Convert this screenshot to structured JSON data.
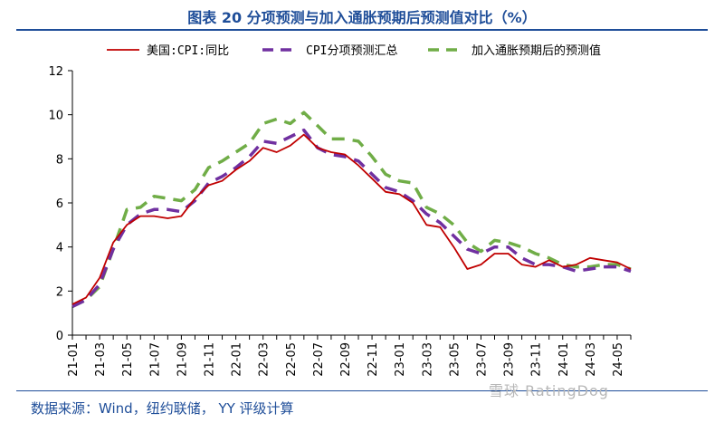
{
  "header": {
    "title": "图表 20 分项预测与加入通胀预期后预测值对比（%）"
  },
  "footer": {
    "source": "数据来源：Wind，纽约联储， YY 评级计算",
    "watermark": "雪球 RatingDog"
  },
  "colors": {
    "cpi": "#c00000",
    "sub": "#7030a0",
    "expect": "#70ad47",
    "accent": "#1f4e99"
  },
  "chart_data": {
    "type": "line",
    "title": "图表 20 分项预测与加入通胀预期后预测值对比（%）",
    "ylim": [
      0,
      12
    ],
    "yticks": [
      0,
      2,
      4,
      6,
      8,
      10,
      12
    ],
    "grid": false,
    "legend_position": "top",
    "x": [
      "21-01",
      "21-02",
      "21-03",
      "21-04",
      "21-05",
      "21-06",
      "21-07",
      "21-08",
      "21-09",
      "21-10",
      "21-11",
      "21-12",
      "22-01",
      "22-02",
      "22-03",
      "22-04",
      "22-05",
      "22-06",
      "22-07",
      "22-08",
      "22-09",
      "22-10",
      "22-11",
      "22-12",
      "23-01",
      "23-02",
      "23-03",
      "23-04",
      "23-05",
      "23-06",
      "23-07",
      "23-08",
      "23-09",
      "23-10",
      "23-11",
      "23-12",
      "24-01",
      "24-02",
      "24-03",
      "24-04",
      "24-05",
      "24-06"
    ],
    "xtick_labels": [
      "21-01",
      "21-03",
      "21-05",
      "21-07",
      "21-09",
      "21-11",
      "22-01",
      "22-03",
      "22-05",
      "22-07",
      "22-09",
      "22-11",
      "23-01",
      "23-03",
      "23-05",
      "23-07",
      "23-09",
      "23-11",
      "24-01",
      "24-03",
      "24-05"
    ],
    "series": [
      {
        "name": "美国:CPI:同比",
        "style": "solid",
        "color": "#c00000",
        "values": [
          1.4,
          1.7,
          2.6,
          4.2,
          5.0,
          5.4,
          5.4,
          5.3,
          5.4,
          6.2,
          6.8,
          7.0,
          7.5,
          7.9,
          8.5,
          8.3,
          8.6,
          9.1,
          8.5,
          8.3,
          8.2,
          7.7,
          7.1,
          6.5,
          6.4,
          6.0,
          5.0,
          4.9,
          4.0,
          3.0,
          3.2,
          3.7,
          3.7,
          3.2,
          3.1,
          3.4,
          3.1,
          3.2,
          3.5,
          3.4,
          3.3,
          3.0
        ]
      },
      {
        "name": "CPI分项预测汇总",
        "style": "dashed",
        "color": "#7030a0",
        "values": [
          1.3,
          1.6,
          2.3,
          3.9,
          5.0,
          5.5,
          5.7,
          5.7,
          5.6,
          6.1,
          6.9,
          7.2,
          7.6,
          8.1,
          8.8,
          8.7,
          9.0,
          9.3,
          8.5,
          8.2,
          8.1,
          7.9,
          7.3,
          6.7,
          6.5,
          6.1,
          5.5,
          5.1,
          4.5,
          3.9,
          3.7,
          4.0,
          4.0,
          3.5,
          3.2,
          3.2,
          3.1,
          2.9,
          3.0,
          3.1,
          3.1,
          2.9
        ]
      },
      {
        "name": "加入通胀预期后的预测值",
        "style": "dashed",
        "color": "#70ad47",
        "values": [
          1.3,
          1.6,
          2.2,
          3.9,
          5.7,
          5.8,
          6.3,
          6.2,
          6.1,
          6.6,
          7.6,
          7.9,
          8.3,
          8.7,
          9.6,
          9.8,
          9.6,
          10.1,
          9.5,
          8.9,
          8.9,
          8.8,
          8.1,
          7.3,
          7.0,
          6.9,
          5.8,
          5.5,
          5.0,
          4.2,
          3.8,
          4.3,
          4.2,
          4.0,
          3.7,
          3.5,
          3.2,
          3.1,
          3.1,
          3.2,
          3.2,
          3.0
        ]
      }
    ]
  }
}
